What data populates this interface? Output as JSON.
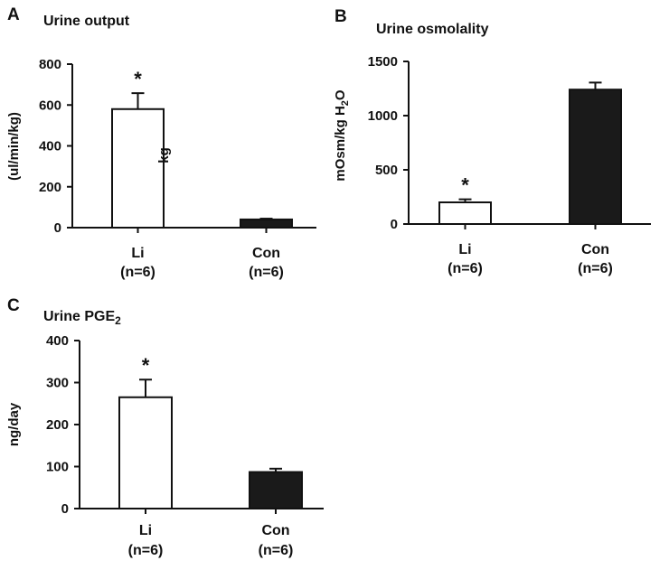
{
  "chart_data": [
    {
      "type": "bar",
      "panel": "A",
      "title": "Urine output",
      "ylabel": "(ul/min/kg)",
      "note": "kg",
      "ylim": [
        0,
        800
      ],
      "yticks": [
        0,
        200,
        400,
        600,
        800
      ],
      "categories": [
        {
          "name": "Li",
          "n": "(n=6)"
        },
        {
          "name": "Con",
          "n": "(n=6)"
        }
      ],
      "values": [
        580,
        40
      ],
      "errors": [
        78,
        4
      ],
      "fills": [
        "white",
        "black"
      ],
      "significance": [
        "*",
        ""
      ]
    },
    {
      "type": "bar",
      "panel": "B",
      "title": "Urine osmolality",
      "ylabel_main": "mOsm/kg H",
      "ylabel_sub": "2",
      "ylabel_end": "O",
      "ylim": [
        0,
        1500
      ],
      "yticks": [
        0,
        500,
        1000,
        1500
      ],
      "categories": [
        {
          "name": "Li",
          "n": "(n=6)"
        },
        {
          "name": "Con",
          "n": "(n=6)"
        }
      ],
      "values": [
        200,
        1240
      ],
      "errors": [
        28,
        65
      ],
      "fills": [
        "white",
        "black"
      ],
      "significance": [
        "*",
        ""
      ]
    },
    {
      "type": "bar",
      "panel": "C",
      "title_main": "Urine PGE",
      "title_sub": "2",
      "ylabel": "ng/day",
      "ylim": [
        0,
        400
      ],
      "yticks": [
        0,
        100,
        200,
        300,
        400
      ],
      "categories": [
        {
          "name": "Li",
          "n": "(n=6)"
        },
        {
          "name": "Con",
          "n": "(n=6)"
        }
      ],
      "values": [
        265,
        87
      ],
      "errors": [
        42,
        8
      ],
      "fills": [
        "white",
        "black"
      ],
      "significance": [
        "*",
        ""
      ]
    }
  ]
}
